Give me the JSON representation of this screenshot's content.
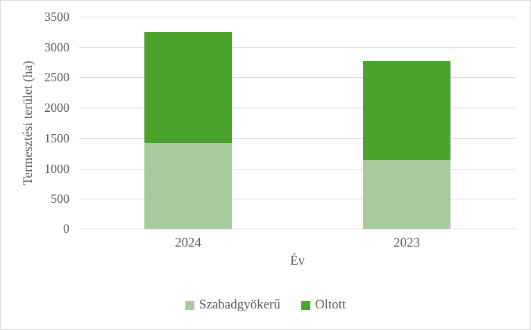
{
  "figure": {
    "background_color": "#ffffff",
    "border_color": "#d9d9d9",
    "text_color": "#595959",
    "gridline_color": "#d9d9d9"
  },
  "chart_data": {
    "type": "bar",
    "stacked": true,
    "title": "",
    "xlabel": "Év",
    "ylabel": "Termesztési terület (ha)",
    "categories": [
      "2024",
      "2023"
    ],
    "series": [
      {
        "name": "Szabadgyökerű",
        "color": "#a7cb9c",
        "values": [
          1420,
          1140
        ]
      },
      {
        "name": "Oltott",
        "color": "#4aa32b",
        "values": [
          1830,
          1630
        ]
      }
    ],
    "totals": [
      3250,
      2770
    ],
    "ylim": [
      0,
      3500
    ],
    "yticks": [
      0,
      500,
      1000,
      1500,
      2000,
      2500,
      3000,
      3500
    ],
    "grid": "horizontal",
    "legend_position": "bottom",
    "legend_entries": [
      "Szabadgyökerű",
      "Oltott"
    ]
  }
}
